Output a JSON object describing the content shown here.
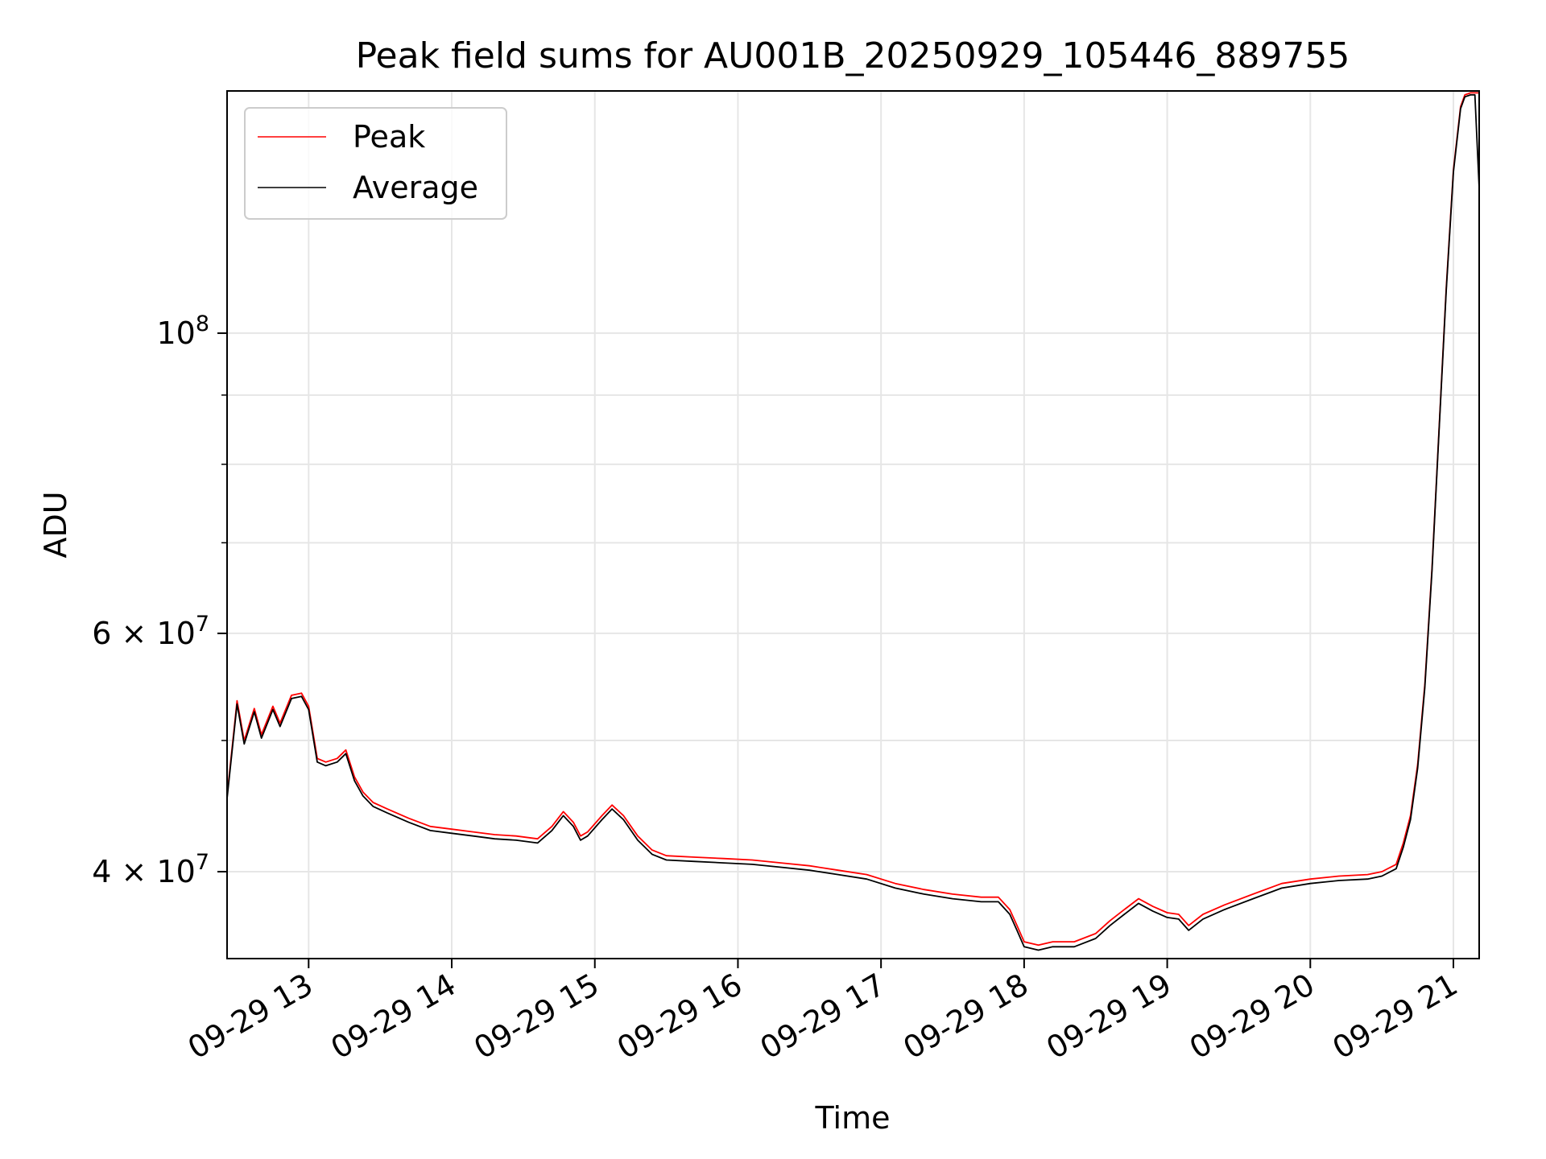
{
  "chart_data": {
    "type": "line",
    "title": "Peak field sums for AU001B_20250929_105446_889755",
    "xlabel": "Time",
    "ylabel": "ADU",
    "x_unit": "hour of 2025-09-29",
    "yscale": "log",
    "xlim": [
      12.43,
      21.18
    ],
    "ylim": [
      34500000,
      151000000
    ],
    "grid": true,
    "legend_position": "upper left",
    "x_ticks": [
      {
        "value": 13,
        "label": "09-29 13"
      },
      {
        "value": 14,
        "label": "09-29 14"
      },
      {
        "value": 15,
        "label": "09-29 15"
      },
      {
        "value": 16,
        "label": "09-29 16"
      },
      {
        "value": 17,
        "label": "09-29 17"
      },
      {
        "value": 18,
        "label": "09-29 18"
      },
      {
        "value": 19,
        "label": "09-29 19"
      },
      {
        "value": 20,
        "label": "09-29 20"
      },
      {
        "value": 21,
        "label": "09-29 21"
      }
    ],
    "y_major_ticks": [
      {
        "value": 100000000,
        "base": "10",
        "exp": "8",
        "mant": ""
      },
      {
        "value": 60000000,
        "base": "10",
        "exp": "7",
        "mant": "6 × "
      },
      {
        "value": 40000000,
        "base": "10",
        "exp": "7",
        "mant": "4 × "
      }
    ],
    "y_minor_ticks": [
      50000000,
      70000000,
      80000000,
      90000000
    ],
    "series": [
      {
        "name": "Peak",
        "color": "#ff0000",
        "x": [
          12.43,
          12.5,
          12.55,
          12.62,
          12.67,
          12.75,
          12.8,
          12.88,
          12.95,
          13.0,
          13.06,
          13.12,
          13.2,
          13.26,
          13.32,
          13.38,
          13.45,
          13.55,
          13.7,
          13.85,
          14.0,
          14.15,
          14.3,
          14.45,
          14.6,
          14.7,
          14.78,
          14.85,
          14.9,
          14.95,
          15.05,
          15.12,
          15.2,
          15.3,
          15.4,
          15.5,
          15.7,
          15.9,
          16.1,
          16.3,
          16.5,
          16.7,
          16.9,
          17.1,
          17.3,
          17.5,
          17.7,
          17.82,
          17.9,
          17.95,
          18.0,
          18.1,
          18.2,
          18.35,
          18.5,
          18.6,
          18.7,
          18.8,
          18.9,
          19.0,
          19.08,
          19.15,
          19.25,
          19.4,
          19.6,
          19.8,
          20.0,
          20.2,
          20.4,
          20.5,
          20.6,
          20.65,
          20.7,
          20.75,
          20.8,
          20.85,
          20.9,
          20.95,
          21.0,
          21.05,
          21.08,
          21.12,
          21.15,
          21.18
        ],
        "y": [
          45500000,
          53500000,
          50000000,
          52800000,
          50500000,
          53000000,
          51500000,
          54000000,
          54200000,
          53000000,
          48500000,
          48200000,
          48500000,
          49200000,
          47000000,
          45800000,
          45000000,
          44500000,
          43800000,
          43200000,
          43000000,
          42800000,
          42600000,
          42500000,
          42300000,
          43200000,
          44300000,
          43500000,
          42500000,
          42800000,
          44000000,
          44800000,
          44000000,
          42500000,
          41500000,
          41100000,
          41000000,
          40900000,
          40800000,
          40600000,
          40400000,
          40100000,
          39800000,
          39200000,
          38800000,
          38500000,
          38300000,
          38300000,
          37500000,
          36500000,
          35500000,
          35300000,
          35500000,
          35500000,
          36000000,
          36800000,
          37500000,
          38200000,
          37700000,
          37300000,
          37200000,
          36500000,
          37200000,
          37800000,
          38500000,
          39200000,
          39500000,
          39700000,
          39800000,
          40000000,
          40500000,
          42000000,
          44000000,
          48000000,
          55000000,
          67000000,
          85000000,
          108000000,
          132000000,
          147000000,
          150000000,
          150500000,
          150500000,
          150500000
        ]
      },
      {
        "name": "Average",
        "color": "#000000",
        "x": [
          12.43,
          12.5,
          12.55,
          12.62,
          12.67,
          12.75,
          12.8,
          12.88,
          12.95,
          13.0,
          13.06,
          13.12,
          13.2,
          13.26,
          13.32,
          13.38,
          13.45,
          13.55,
          13.7,
          13.85,
          14.0,
          14.15,
          14.3,
          14.45,
          14.6,
          14.7,
          14.78,
          14.85,
          14.9,
          14.95,
          15.05,
          15.12,
          15.2,
          15.3,
          15.4,
          15.5,
          15.7,
          15.9,
          16.1,
          16.3,
          16.5,
          16.7,
          16.9,
          17.1,
          17.3,
          17.5,
          17.7,
          17.82,
          17.9,
          17.95,
          18.0,
          18.1,
          18.2,
          18.35,
          18.5,
          18.6,
          18.7,
          18.8,
          18.9,
          19.0,
          19.08,
          19.15,
          19.25,
          19.4,
          19.6,
          19.8,
          20.0,
          20.2,
          20.4,
          20.5,
          20.6,
          20.65,
          20.7,
          20.75,
          20.8,
          20.85,
          20.9,
          20.95,
          21.0,
          21.05,
          21.08,
          21.12,
          21.15,
          21.18
        ],
        "y": [
          45300000,
          53200000,
          49700000,
          52500000,
          50200000,
          52700000,
          51200000,
          53700000,
          53900000,
          52700000,
          48200000,
          47900000,
          48200000,
          48900000,
          46700000,
          45500000,
          44700000,
          44200000,
          43500000,
          42900000,
          42700000,
          42500000,
          42300000,
          42200000,
          42000000,
          42900000,
          44000000,
          43200000,
          42200000,
          42500000,
          43700000,
          44500000,
          43700000,
          42200000,
          41200000,
          40800000,
          40700000,
          40600000,
          40500000,
          40300000,
          40100000,
          39800000,
          39500000,
          38900000,
          38500000,
          38200000,
          38000000,
          38000000,
          37200000,
          36200000,
          35200000,
          35000000,
          35200000,
          35200000,
          35700000,
          36500000,
          37200000,
          37900000,
          37400000,
          37000000,
          36900000,
          36200000,
          36900000,
          37500000,
          38200000,
          38900000,
          39200000,
          39400000,
          39500000,
          39700000,
          40200000,
          41700000,
          43700000,
          47700000,
          54700000,
          66700000,
          84700000,
          107500000,
          131500000,
          146500000,
          149500000,
          150000000,
          150000000,
          128000000
        ]
      }
    ]
  }
}
